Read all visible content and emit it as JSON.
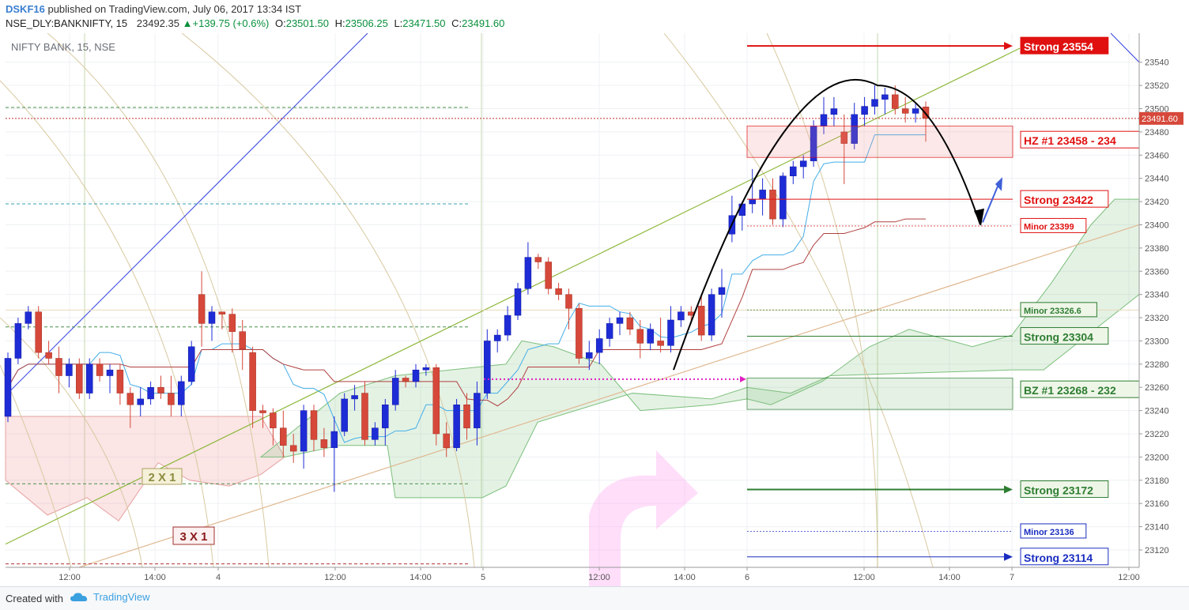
{
  "header": {
    "author": "DSKF16",
    "published": " published on TradingView.com, July 06, 2017 13:34 IST",
    "symbol": "NSE_DLY:BANKNIFTY, 15",
    "last": "23492.35",
    "change": "+139.75 (+0.6%)",
    "o_label": "O:",
    "o_val": "23501.50",
    "h_label": "H:",
    "h_val": "23506.25",
    "l_label": "L:",
    "l_val": "23471.50",
    "c_label": "C:",
    "c_val": "23491.60"
  },
  "footer": {
    "created": "Created with",
    "brand": "TradingView"
  },
  "chart_data": {
    "type": "candlestick",
    "title": "NIFTY BANK, 15, NSE",
    "last_price_label": "23491.60",
    "y_ticks": [
      23120,
      23140,
      23160,
      23180,
      23200,
      23220,
      23240,
      23260,
      23280,
      23300,
      23320,
      23340,
      23360,
      23380,
      23400,
      23420,
      23440,
      23460,
      23480,
      23500,
      23520,
      23540
    ],
    "ylim": [
      23105,
      23565
    ],
    "x_ticks": [
      "12:00",
      "14:00",
      "4",
      "12:00",
      "14:00",
      "5",
      "12:00",
      "14:00",
      "6",
      "12:00",
      "14:00",
      "7",
      "12:00"
    ],
    "colors": {
      "up": "#1e2cd6",
      "down": "#d6483a",
      "arrow": "#000000"
    },
    "candles": [
      {
        "o": 23235,
        "h": 23290,
        "l": 23230,
        "c": 23285
      },
      {
        "o": 23285,
        "h": 23320,
        "l": 23280,
        "c": 23315
      },
      {
        "o": 23315,
        "h": 23330,
        "l": 23310,
        "c": 23325
      },
      {
        "o": 23325,
        "h": 23330,
        "l": 23285,
        "c": 23290
      },
      {
        "o": 23290,
        "h": 23300,
        "l": 23280,
        "c": 23285
      },
      {
        "o": 23285,
        "h": 23295,
        "l": 23255,
        "c": 23270
      },
      {
        "o": 23270,
        "h": 23285,
        "l": 23260,
        "c": 23280
      },
      {
        "o": 23280,
        "h": 23285,
        "l": 23250,
        "c": 23255
      },
      {
        "o": 23255,
        "h": 23285,
        "l": 23250,
        "c": 23280
      },
      {
        "o": 23280,
        "h": 23285,
        "l": 23265,
        "c": 23270
      },
      {
        "o": 23270,
        "h": 23280,
        "l": 23255,
        "c": 23275
      },
      {
        "o": 23275,
        "h": 23280,
        "l": 23245,
        "c": 23255
      },
      {
        "o": 23255,
        "h": 23260,
        "l": 23225,
        "c": 23245
      },
      {
        "o": 23245,
        "h": 23260,
        "l": 23235,
        "c": 23250
      },
      {
        "o": 23250,
        "h": 23265,
        "l": 23245,
        "c": 23260
      },
      {
        "o": 23260,
        "h": 23270,
        "l": 23250,
        "c": 23255
      },
      {
        "o": 23255,
        "h": 23270,
        "l": 23235,
        "c": 23245
      },
      {
        "o": 23245,
        "h": 23270,
        "l": 23235,
        "c": 23265
      },
      {
        "o": 23265,
        "h": 23300,
        "l": 23262,
        "c": 23295
      },
      {
        "o": 23340,
        "h": 23360,
        "l": 23295,
        "c": 23315
      },
      {
        "o": 23315,
        "h": 23330,
        "l": 23300,
        "c": 23325
      },
      {
        "o": 23325,
        "h": 23325,
        "l": 23310,
        "c": 23323
      },
      {
        "o": 23323,
        "h": 23328,
        "l": 23290,
        "c": 23308
      },
      {
        "o": 23308,
        "h": 23318,
        "l": 23275,
        "c": 23293
      },
      {
        "o": 23290,
        "h": 23295,
        "l": 23225,
        "c": 23240
      },
      {
        "o": 23240,
        "h": 23245,
        "l": 23225,
        "c": 23238
      },
      {
        "o": 23238,
        "h": 23242,
        "l": 23210,
        "c": 23225
      },
      {
        "o": 23225,
        "h": 23240,
        "l": 23200,
        "c": 23210
      },
      {
        "o": 23210,
        "h": 23220,
        "l": 23195,
        "c": 23205
      },
      {
        "o": 23205,
        "h": 23245,
        "l": 23190,
        "c": 23240
      },
      {
        "o": 23240,
        "h": 23245,
        "l": 23205,
        "c": 23215
      },
      {
        "o": 23215,
        "h": 23225,
        "l": 23200,
        "c": 23208
      },
      {
        "o": 23208,
        "h": 23235,
        "l": 23170,
        "c": 23222
      },
      {
        "o": 23222,
        "h": 23255,
        "l": 23218,
        "c": 23250
      },
      {
        "o": 23250,
        "h": 23262,
        "l": 23240,
        "c": 23253
      },
      {
        "o": 23255,
        "h": 23265,
        "l": 23210,
        "c": 23215
      },
      {
        "o": 23215,
        "h": 23230,
        "l": 23210,
        "c": 23225
      },
      {
        "o": 23225,
        "h": 23250,
        "l": 23210,
        "c": 23245
      },
      {
        "o": 23245,
        "h": 23275,
        "l": 23240,
        "c": 23268
      },
      {
        "o": 23268,
        "h": 23270,
        "l": 23260,
        "c": 23265
      },
      {
        "o": 23265,
        "h": 23280,
        "l": 23260,
        "c": 23275
      },
      {
        "o": 23275,
        "h": 23280,
        "l": 23270,
        "c": 23277
      },
      {
        "o": 23277,
        "h": 23280,
        "l": 23210,
        "c": 23220
      },
      {
        "o": 23220,
        "h": 23230,
        "l": 23200,
        "c": 23208
      },
      {
        "o": 23208,
        "h": 23250,
        "l": 23205,
        "c": 23245
      },
      {
        "o": 23245,
        "h": 23255,
        "l": 23215,
        "c": 23225
      },
      {
        "o": 23225,
        "h": 23265,
        "l": 23210,
        "c": 23255
      },
      {
        "o": 23255,
        "h": 23310,
        "l": 23250,
        "c": 23300
      },
      {
        "o": 23300,
        "h": 23310,
        "l": 23290,
        "c": 23305
      },
      {
        "o": 23305,
        "h": 23330,
        "l": 23300,
        "c": 23322
      },
      {
        "o": 23322,
        "h": 23350,
        "l": 23318,
        "c": 23345
      },
      {
        "o": 23345,
        "h": 23385,
        "l": 23340,
        "c": 23372
      },
      {
        "o": 23372,
        "h": 23375,
        "l": 23362,
        "c": 23368
      },
      {
        "o": 23368,
        "h": 23372,
        "l": 23340,
        "c": 23345
      },
      {
        "o": 23345,
        "h": 23350,
        "l": 23335,
        "c": 23340
      },
      {
        "o": 23340,
        "h": 23345,
        "l": 23310,
        "c": 23328
      },
      {
        "o": 23328,
        "h": 23332,
        "l": 23280,
        "c": 23285
      },
      {
        "o": 23285,
        "h": 23300,
        "l": 23275,
        "c": 23290
      },
      {
        "o": 23290,
        "h": 23310,
        "l": 23280,
        "c": 23302
      },
      {
        "o": 23302,
        "h": 23320,
        "l": 23295,
        "c": 23315
      },
      {
        "o": 23315,
        "h": 23325,
        "l": 23305,
        "c": 23320
      },
      {
        "o": 23320,
        "h": 23325,
        "l": 23305,
        "c": 23310
      },
      {
        "o": 23310,
        "h": 23318,
        "l": 23285,
        "c": 23298
      },
      {
        "o": 23298,
        "h": 23315,
        "l": 23292,
        "c": 23310
      },
      {
        "o": 23300,
        "h": 23320,
        "l": 23290,
        "c": 23296
      },
      {
        "o": 23296,
        "h": 23330,
        "l": 23290,
        "c": 23318
      },
      {
        "o": 23318,
        "h": 23330,
        "l": 23312,
        "c": 23325
      },
      {
        "o": 23325,
        "h": 23330,
        "l": 23315,
        "c": 23322
      },
      {
        "o": 23330,
        "h": 23340,
        "l": 23300,
        "c": 23305
      },
      {
        "o": 23305,
        "h": 23345,
        "l": 23300,
        "c": 23340
      },
      {
        "o": 23340,
        "h": 23362,
        "l": 23320,
        "c": 23346
      },
      {
        "o": 23392,
        "h": 23425,
        "l": 23385,
        "c": 23408
      },
      {
        "o": 23408,
        "h": 23420,
        "l": 23395,
        "c": 23418
      },
      {
        "o": 23418,
        "h": 23448,
        "l": 23410,
        "c": 23422
      },
      {
        "o": 23422,
        "h": 23440,
        "l": 23408,
        "c": 23430
      },
      {
        "o": 23430,
        "h": 23440,
        "l": 23400,
        "c": 23405
      },
      {
        "o": 23405,
        "h": 23445,
        "l": 23398,
        "c": 23442
      },
      {
        "o": 23442,
        "h": 23455,
        "l": 23435,
        "c": 23450
      },
      {
        "o": 23450,
        "h": 23460,
        "l": 23440,
        "c": 23455
      },
      {
        "o": 23455,
        "h": 23490,
        "l": 23450,
        "c": 23485
      },
      {
        "o": 23485,
        "h": 23510,
        "l": 23478,
        "c": 23495
      },
      {
        "o": 23495,
        "h": 23510,
        "l": 23485,
        "c": 23500
      },
      {
        "o": 23480,
        "h": 23495,
        "l": 23435,
        "c": 23470
      },
      {
        "o": 23470,
        "h": 23505,
        "l": 23465,
        "c": 23495
      },
      {
        "o": 23495,
        "h": 23510,
        "l": 23485,
        "c": 23502
      },
      {
        "o": 23502,
        "h": 23520,
        "l": 23495,
        "c": 23508
      },
      {
        "o": 23508,
        "h": 23518,
        "l": 23495,
        "c": 23512
      },
      {
        "o": 23512,
        "h": 23520,
        "l": 23495,
        "c": 23500
      },
      {
        "o": 23500,
        "h": 23510,
        "l": 23488,
        "c": 23496
      },
      {
        "o": 23496,
        "h": 23505,
        "l": 23488,
        "c": 23500
      },
      {
        "o": 23501.5,
        "h": 23506.25,
        "l": 23471.5,
        "c": 23491.6
      }
    ],
    "levels": [
      {
        "label": "Strong 23554",
        "color": "#e01010",
        "style": "arrow"
      },
      {
        "label": "HZ #1 23458 - 234",
        "color": "#e01010",
        "style": "zone"
      },
      {
        "label": "Strong 23422",
        "color": "#e01010",
        "style": "line"
      },
      {
        "label": "Minor 23399",
        "color": "#e01010",
        "style": "minor"
      },
      {
        "label": "Minor 23326.6",
        "color": "#2e7d32",
        "style": "minor"
      },
      {
        "label": "Strong 23304",
        "color": "#2e7d32",
        "style": "line"
      },
      {
        "label": "BZ #1 23268 - 232",
        "color": "#2e7d32",
        "style": "zone"
      },
      {
        "label": "Strong 23172",
        "color": "#2e7d32",
        "style": "arrow"
      },
      {
        "label": "Minor 23136",
        "color": "#1a2dc0",
        "style": "minor"
      },
      {
        "label": "Strong 23114",
        "color": "#1a2dc0",
        "style": "arrow"
      }
    ],
    "annotations": [
      "2 X 1",
      "3 X 1"
    ]
  }
}
